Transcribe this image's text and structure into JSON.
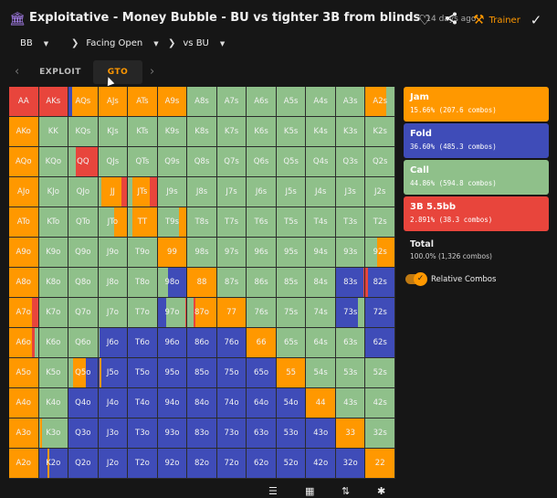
{
  "header": {
    "title": "Exploitative - Money Bubble - BU vs tighter 3B from blinds",
    "age": "14 days ago",
    "trainer_label": "Trainer"
  },
  "filters": {
    "position": "BB",
    "situation": "Facing Open",
    "opponent": "vs BU"
  },
  "tabs": [
    {
      "label": "EXPLOIT",
      "active": false
    },
    {
      "label": "GTO",
      "active": true
    }
  ],
  "actions": [
    {
      "name": "Jam",
      "stats": "15.66% (207.6 combos)",
      "color": "#ff9800"
    },
    {
      "name": "Fold",
      "stats": "36.60% (485.3 combos)",
      "color": "#3f4cb8"
    },
    {
      "name": "Call",
      "stats": "44.86% (594.8 combos)",
      "color": "#8fc08a"
    },
    {
      "name": "3B 5.5bb",
      "stats": "2.891% (38.3 combos)",
      "color": "#e8453c"
    }
  ],
  "total": {
    "label": "Total",
    "stats": "100.0% (1,326 combos)"
  },
  "relative_combos": {
    "label": "Relative Combos",
    "checked": true
  },
  "range_grid": {
    "rows": [
      [
        "AA",
        "AKs",
        "AQs",
        "AJs",
        "ATs",
        "A9s",
        "A8s",
        "A7s",
        "A6s",
        "A5s",
        "A4s",
        "A3s",
        "A2s"
      ],
      [
        "AKo",
        "KK",
        "KQs",
        "KJs",
        "KTs",
        "K9s",
        "K8s",
        "K7s",
        "K6s",
        "K5s",
        "K4s",
        "K3s",
        "K2s"
      ],
      [
        "AQo",
        "KQo",
        "QQ",
        "QJs",
        "QTs",
        "Q9s",
        "Q8s",
        "Q7s",
        "Q6s",
        "Q5s",
        "Q4s",
        "Q3s",
        "Q2s"
      ],
      [
        "AJo",
        "KJo",
        "QJo",
        "JJ",
        "JTs",
        "J9s",
        "J8s",
        "J7s",
        "J6s",
        "J5s",
        "J4s",
        "J3s",
        "J2s"
      ],
      [
        "ATo",
        "KTo",
        "QTo",
        "JTo",
        "TT",
        "T9s",
        "T8s",
        "T7s",
        "T6s",
        "T5s",
        "T4s",
        "T3s",
        "T2s"
      ],
      [
        "A9o",
        "K9o",
        "Q9o",
        "J9o",
        "T9o",
        "99",
        "98s",
        "97s",
        "96s",
        "95s",
        "94s",
        "93s",
        "92s"
      ],
      [
        "A8o",
        "K8o",
        "Q8o",
        "J8o",
        "T8o",
        "98o",
        "88",
        "87s",
        "86s",
        "85s",
        "84s",
        "83s",
        "82s"
      ],
      [
        "A7o",
        "K7o",
        "Q7o",
        "J7o",
        "T7o",
        "97o",
        "87o",
        "77",
        "76s",
        "75s",
        "74s",
        "73s",
        "72s"
      ],
      [
        "A6o",
        "K6o",
        "Q6o",
        "J6o",
        "T6o",
        "96o",
        "86o",
        "76o",
        "66",
        "65s",
        "64s",
        "63s",
        "62s"
      ],
      [
        "A5o",
        "K5o",
        "Q5o",
        "J5o",
        "T5o",
        "95o",
        "85o",
        "75o",
        "65o",
        "55",
        "54s",
        "53s",
        "52s"
      ],
      [
        "A4o",
        "K4o",
        "Q4o",
        "J4o",
        "T4o",
        "94o",
        "84o",
        "74o",
        "64o",
        "54o",
        "44",
        "43s",
        "42s"
      ],
      [
        "A3o",
        "K3o",
        "Q3o",
        "J3o",
        "T3o",
        "93o",
        "83o",
        "73o",
        "63o",
        "53o",
        "43o",
        "33",
        "32s"
      ],
      [
        "A2o",
        "K2o",
        "Q2o",
        "J2o",
        "T2o",
        "92o",
        "82o",
        "72o",
        "62o",
        "52o",
        "42o",
        "32o",
        "22"
      ]
    ],
    "cells": [
      [
        "R",
        "R",
        "F:.12,J:.88",
        "J",
        "J",
        "J",
        "C",
        "C",
        "C",
        "C",
        "C",
        "C",
        "J:.7,C:.3"
      ],
      [
        "J",
        "C",
        "C",
        "C",
        "C",
        "C",
        "C",
        "C",
        "C",
        "C",
        "C",
        "C",
        "C"
      ],
      [
        "J",
        "C",
        "C:.25,R:.75",
        "C",
        "C",
        "C",
        "C",
        "C",
        "C",
        "C",
        "C",
        "C",
        "C"
      ],
      [
        "J",
        "C",
        "C",
        "C:.1,J:.7,R:.2",
        "C:.15,J:.6,R:.25",
        "C",
        "C",
        "C",
        "C",
        "C",
        "C",
        "C",
        "C"
      ],
      [
        "J",
        "C",
        "C",
        "C:.55,J:.45",
        "C:.15,J:.85",
        "C:.75,J:.25",
        "C",
        "C",
        "C",
        "C",
        "C",
        "C",
        "C"
      ],
      [
        "J",
        "C",
        "C",
        "C",
        "C",
        "J",
        "C",
        "C",
        "C",
        "C",
        "C",
        "C",
        "C:.4,J:.6"
      ],
      [
        "J",
        "C",
        "C",
        "C",
        "C",
        "C:.35,F:.65",
        "J",
        "C",
        "C",
        "C",
        "C",
        "F:.95,R:.05",
        "R:.08,F:.92"
      ],
      [
        "J:.8,R:.2",
        "C",
        "C",
        "C",
        "C",
        "F:.3,C:.65,R:.05",
        "C:.2,R:.08,J:.72",
        "J",
        "C",
        "C",
        "C",
        "F:.75,C:.25",
        "F"
      ],
      [
        "J:.8,R:.1,C:.1",
        "C",
        "C",
        "C:.05,F:.95",
        "F",
        "F",
        "F",
        "F",
        "J",
        "C",
        "C",
        "C",
        "F"
      ],
      [
        "J",
        "C",
        "C:.15,J:.45,F:.4",
        "F:.05,J:.05,F:.9",
        "F",
        "F",
        "F",
        "F",
        "F",
        "J",
        "C",
        "C",
        "C"
      ],
      [
        "J",
        "C",
        "F",
        "F",
        "F",
        "F",
        "F",
        "F",
        "F",
        "F",
        "J",
        "C",
        "C"
      ],
      [
        "J",
        "C:.05,J:.05,C:.9",
        "F",
        "F",
        "F",
        "F",
        "F",
        "F",
        "F",
        "F",
        "F",
        "J",
        "C"
      ],
      [
        "J",
        "F:.3,J:.05,F:.65",
        "F",
        "F",
        "F",
        "F",
        "F",
        "F",
        "F",
        "F",
        "F",
        "F",
        "J"
      ]
    ]
  },
  "bottom_icons": [
    "list-icon",
    "table-icon",
    "sort-icon",
    "share-nodes-icon"
  ]
}
